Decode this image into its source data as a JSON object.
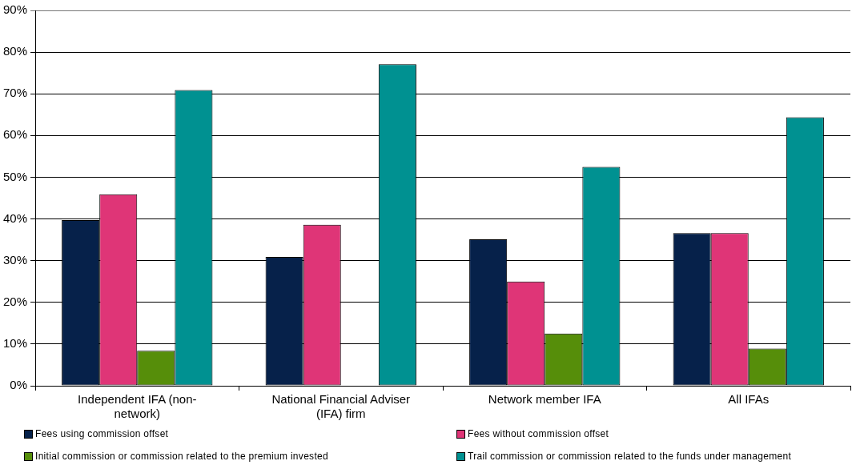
{
  "chart_data": {
    "type": "bar",
    "categories": [
      "Independent IFA (non-network)",
      "National Financial Adviser (IFA) firm",
      "Network member IFA",
      "All IFAs"
    ],
    "series": [
      {
        "name": "Fees using commission offset",
        "color": "#06214a",
        "values": [
          39.7,
          30.9,
          35.1,
          36.6
        ]
      },
      {
        "name": "Fees without commission offset",
        "color": "#df3577",
        "values": [
          45.9,
          38.6,
          25.0,
          36.6
        ]
      },
      {
        "name": "Initial commission or commission related to the premium invested",
        "color": "#568e0a",
        "values": [
          8.4,
          null,
          12.5,
          8.9
        ]
      },
      {
        "name": "Trail commission or commission related to the funds under management",
        "color": "#009191",
        "values": [
          70.9,
          77.1,
          52.5,
          64.4
        ]
      }
    ],
    "ylim": [
      0,
      90
    ],
    "yticks": [
      {
        "value": 0,
        "label": "0%"
      },
      {
        "value": 10,
        "label": "10%"
      },
      {
        "value": 20,
        "label": "20%"
      },
      {
        "value": 30,
        "label": "30%"
      },
      {
        "value": 40,
        "label": "40%"
      },
      {
        "value": 50,
        "label": "50%"
      },
      {
        "value": 60,
        "label": "60%"
      },
      {
        "value": 70,
        "label": "70%"
      },
      {
        "value": 80,
        "label": "80%"
      },
      {
        "value": 90,
        "label": "90%"
      }
    ],
    "grid": "y",
    "legend": "bottom"
  }
}
